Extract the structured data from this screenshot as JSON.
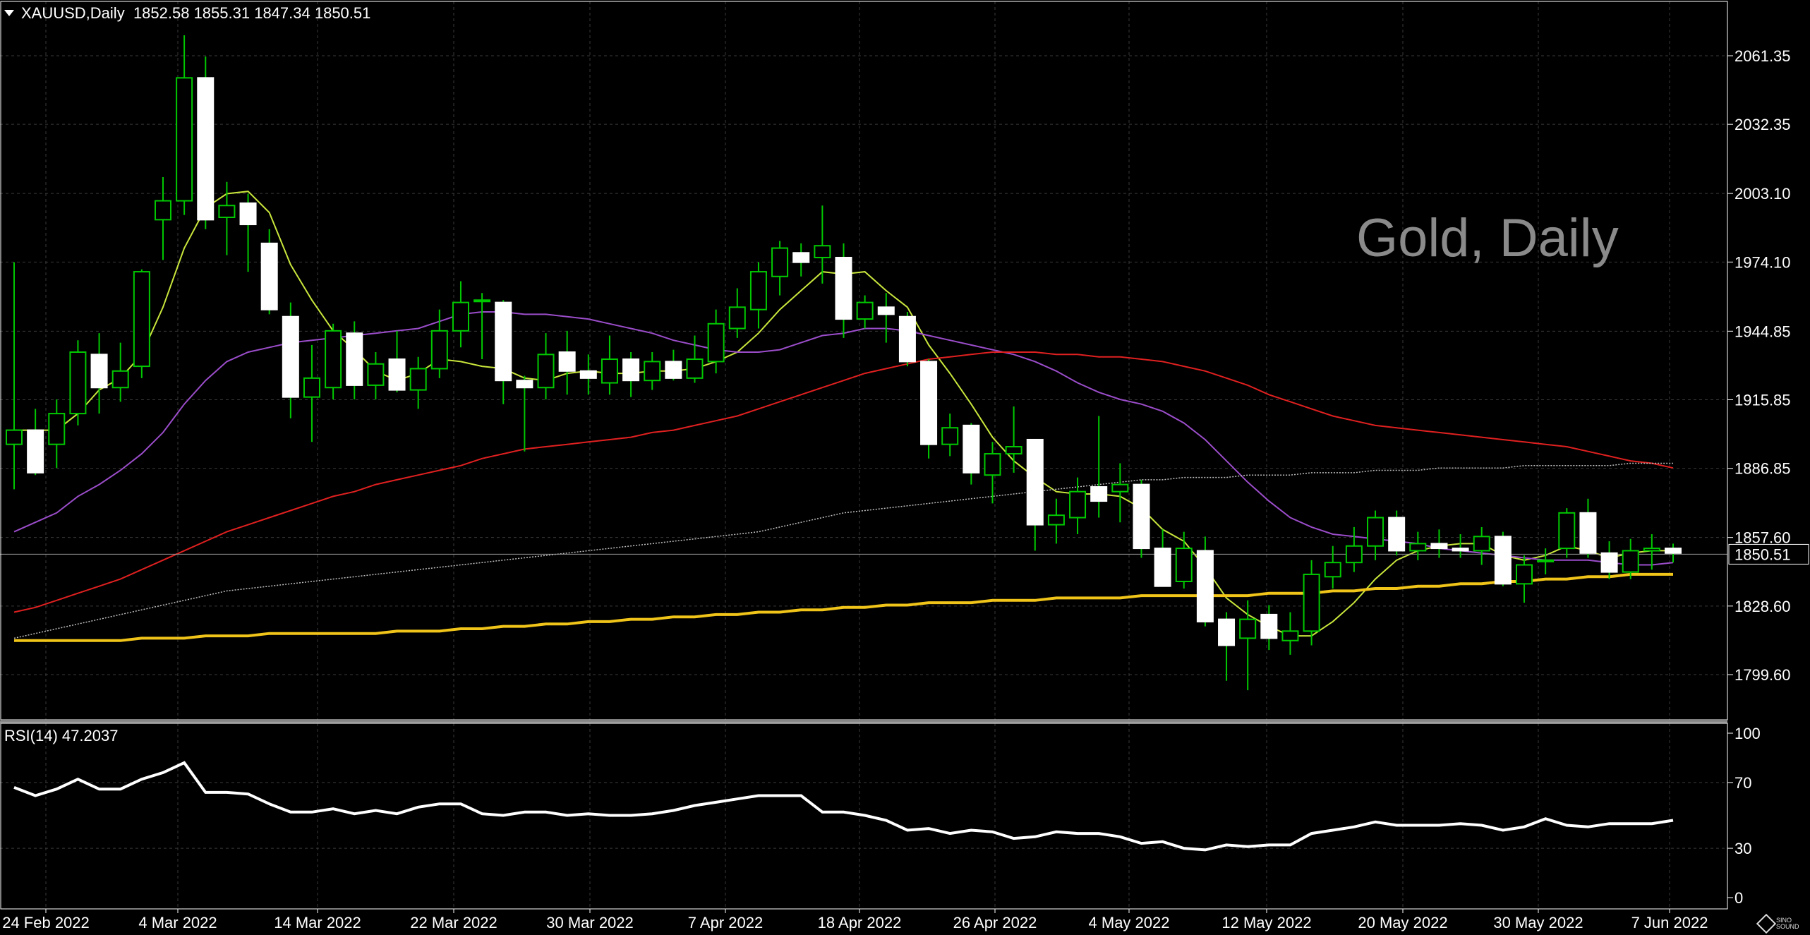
{
  "header": {
    "symbol": "XAUUSD,Daily",
    "ohlc": "1852.58 1855.31 1847.34 1850.51"
  },
  "watermark": "Gold, Daily",
  "rsi": {
    "label": "RSI(14) 47.2037",
    "levels": [
      "100",
      "70",
      "30",
      "0"
    ]
  },
  "logo_text": "SINO SOUND",
  "colors": {
    "background": "#000000",
    "grid": "#3a3a3a",
    "candle_up_border": "#00c800",
    "candle_fill": "#ffffff",
    "ma_short": "#c8e63c",
    "ma_mid": "#9b4dca",
    "ma_long": "#e02020",
    "ma_200": "#bfbfbf",
    "ma_yellow": "#f0c419",
    "rsi_line": "#ffffff"
  },
  "chart_data": [
    {
      "type": "candlestick",
      "title": "XAUUSD,Daily",
      "ylim": [
        1785,
        2075
      ],
      "y_ticks": [
        "2061.35",
        "2032.35",
        "2003.10",
        "1974.10",
        "1944.85",
        "1915.85",
        "1886.85",
        "1857.60",
        "1828.60",
        "1799.60"
      ],
      "current_price": "1850.51",
      "x_labels": [
        "24 Feb 2022",
        "4 Mar 2022",
        "14 Mar 2022",
        "22 Mar 2022",
        "30 Mar 2022",
        "7 Apr 2022",
        "18 Apr 2022",
        "26 Apr 2022",
        "4 May 2022",
        "12 May 2022",
        "20 May 2022",
        "30 May 2022",
        "7 Jun 2022"
      ],
      "candles": [
        {
          "o": 1897,
          "h": 1974,
          "l": 1878,
          "c": 1903
        },
        {
          "o": 1903,
          "h": 1912,
          "l": 1884,
          "c": 1885
        },
        {
          "o": 1897,
          "h": 1916,
          "l": 1887,
          "c": 1910
        },
        {
          "o": 1910,
          "h": 1941,
          "l": 1905,
          "c": 1936
        },
        {
          "o": 1935,
          "h": 1944,
          "l": 1910,
          "c": 1921
        },
        {
          "o": 1921,
          "h": 1940,
          "l": 1915,
          "c": 1928
        },
        {
          "o": 1930,
          "h": 1971,
          "l": 1925,
          "c": 1970
        },
        {
          "o": 1992,
          "h": 2010,
          "l": 1975,
          "c": 2000
        },
        {
          "o": 2000,
          "h": 2070,
          "l": 1994,
          "c": 2052
        },
        {
          "o": 2052,
          "h": 2061,
          "l": 1988,
          "c": 1992
        },
        {
          "o": 1993,
          "h": 2008,
          "l": 1977,
          "c": 1998
        },
        {
          "o": 1999,
          "h": 2003,
          "l": 1970,
          "c": 1990
        },
        {
          "o": 1982,
          "h": 1988,
          "l": 1952,
          "c": 1954
        },
        {
          "o": 1951,
          "h": 1957,
          "l": 1908,
          "c": 1917
        },
        {
          "o": 1917,
          "h": 1939,
          "l": 1898,
          "c": 1925
        },
        {
          "o": 1921,
          "h": 1948,
          "l": 1916,
          "c": 1945
        },
        {
          "o": 1944,
          "h": 1949,
          "l": 1916,
          "c": 1922
        },
        {
          "o": 1922,
          "h": 1936,
          "l": 1916,
          "c": 1931
        },
        {
          "o": 1933,
          "h": 1945,
          "l": 1919,
          "c": 1920
        },
        {
          "o": 1920,
          "h": 1934,
          "l": 1912,
          "c": 1929
        },
        {
          "o": 1929,
          "h": 1954,
          "l": 1925,
          "c": 1945
        },
        {
          "o": 1945,
          "h": 1966,
          "l": 1938,
          "c": 1957
        },
        {
          "o": 1958,
          "h": 1961,
          "l": 1933,
          "c": 1958
        },
        {
          "o": 1957,
          "h": 1958,
          "l": 1914,
          "c": 1924
        },
        {
          "o": 1924,
          "h": 1926,
          "l": 1894,
          "c": 1921
        },
        {
          "o": 1921,
          "h": 1944,
          "l": 1916,
          "c": 1935
        },
        {
          "o": 1936,
          "h": 1945,
          "l": 1918,
          "c": 1928
        },
        {
          "o": 1928,
          "h": 1935,
          "l": 1918,
          "c": 1925
        },
        {
          "o": 1923,
          "h": 1943,
          "l": 1918,
          "c": 1933
        },
        {
          "o": 1933,
          "h": 1936,
          "l": 1917,
          "c": 1924
        },
        {
          "o": 1924,
          "h": 1936,
          "l": 1920,
          "c": 1932
        },
        {
          "o": 1932,
          "h": 1937,
          "l": 1924,
          "c": 1925
        },
        {
          "o": 1925,
          "h": 1943,
          "l": 1923,
          "c": 1933
        },
        {
          "o": 1932,
          "h": 1954,
          "l": 1927,
          "c": 1948
        },
        {
          "o": 1946,
          "h": 1963,
          "l": 1942,
          "c": 1955
        },
        {
          "o": 1954,
          "h": 1974,
          "l": 1946,
          "c": 1970
        },
        {
          "o": 1968,
          "h": 1983,
          "l": 1960,
          "c": 1980
        },
        {
          "o": 1978,
          "h": 1982,
          "l": 1968,
          "c": 1974
        },
        {
          "o": 1976,
          "h": 1998,
          "l": 1965,
          "c": 1981
        },
        {
          "o": 1976,
          "h": 1982,
          "l": 1942,
          "c": 1950
        },
        {
          "o": 1950,
          "h": 1960,
          "l": 1946,
          "c": 1957
        },
        {
          "o": 1955,
          "h": 1961,
          "l": 1940,
          "c": 1952
        },
        {
          "o": 1951,
          "h": 1953,
          "l": 1930,
          "c": 1932
        },
        {
          "o": 1932,
          "h": 1933,
          "l": 1891,
          "c": 1897
        },
        {
          "o": 1897,
          "h": 1910,
          "l": 1892,
          "c": 1904
        },
        {
          "o": 1905,
          "h": 1906,
          "l": 1880,
          "c": 1885
        },
        {
          "o": 1884,
          "h": 1898,
          "l": 1872,
          "c": 1893
        },
        {
          "o": 1893,
          "h": 1913,
          "l": 1885,
          "c": 1896
        },
        {
          "o": 1899,
          "h": 1899,
          "l": 1852,
          "c": 1863
        },
        {
          "o": 1863,
          "h": 1874,
          "l": 1855,
          "c": 1867
        },
        {
          "o": 1866,
          "h": 1883,
          "l": 1859,
          "c": 1877
        },
        {
          "o": 1879,
          "h": 1909,
          "l": 1866,
          "c": 1873
        },
        {
          "o": 1877,
          "h": 1889,
          "l": 1864,
          "c": 1880
        },
        {
          "o": 1880,
          "h": 1882,
          "l": 1849,
          "c": 1853
        },
        {
          "o": 1853,
          "h": 1861,
          "l": 1837,
          "c": 1837
        },
        {
          "o": 1839,
          "h": 1860,
          "l": 1836,
          "c": 1853
        },
        {
          "o": 1852,
          "h": 1858,
          "l": 1820,
          "c": 1822
        },
        {
          "o": 1823,
          "h": 1826,
          "l": 1797,
          "c": 1812
        },
        {
          "o": 1815,
          "h": 1831,
          "l": 1793,
          "c": 1823
        },
        {
          "o": 1825,
          "h": 1829,
          "l": 1810,
          "c": 1815
        },
        {
          "o": 1814,
          "h": 1826,
          "l": 1808,
          "c": 1818
        },
        {
          "o": 1818,
          "h": 1848,
          "l": 1812,
          "c": 1842
        },
        {
          "o": 1841,
          "h": 1854,
          "l": 1836,
          "c": 1847
        },
        {
          "o": 1847,
          "h": 1862,
          "l": 1843,
          "c": 1854
        },
        {
          "o": 1854,
          "h": 1869,
          "l": 1848,
          "c": 1866
        },
        {
          "o": 1866,
          "h": 1869,
          "l": 1850,
          "c": 1852
        },
        {
          "o": 1852,
          "h": 1860,
          "l": 1848,
          "c": 1855
        },
        {
          "o": 1855,
          "h": 1861,
          "l": 1849,
          "c": 1853
        },
        {
          "o": 1853,
          "h": 1859,
          "l": 1849,
          "c": 1852
        },
        {
          "o": 1852,
          "h": 1862,
          "l": 1846,
          "c": 1858
        },
        {
          "o": 1858,
          "h": 1860,
          "l": 1837,
          "c": 1838
        },
        {
          "o": 1838,
          "h": 1850,
          "l": 1830,
          "c": 1846
        },
        {
          "o": 1848,
          "h": 1853,
          "l": 1842,
          "c": 1848
        },
        {
          "o": 1853,
          "h": 1870,
          "l": 1849,
          "c": 1868
        },
        {
          "o": 1868,
          "h": 1874,
          "l": 1849,
          "c": 1851
        },
        {
          "o": 1851,
          "h": 1856,
          "l": 1840,
          "c": 1843
        },
        {
          "o": 1843,
          "h": 1857,
          "l": 1840,
          "c": 1852
        },
        {
          "o": 1852,
          "h": 1859,
          "l": 1844,
          "c": 1853
        },
        {
          "o": 1853,
          "h": 1855,
          "l": 1847,
          "c": 1851
        }
      ],
      "moving_averages": [
        {
          "color": "#c8e63c",
          "values": [
            1903,
            1903,
            1903,
            1910,
            1920,
            1925,
            1935,
            1955,
            1980,
            1997,
            2003,
            2004,
            1995,
            1973,
            1958,
            1945,
            1937,
            1928,
            1924,
            1927,
            1933,
            1932,
            1930,
            1929,
            1925,
            1924,
            1927,
            1928,
            1927,
            1927,
            1928,
            1928,
            1929,
            1932,
            1936,
            1944,
            1954,
            1962,
            1970,
            1969,
            1970,
            1962,
            1955,
            1939,
            1927,
            1914,
            1900,
            1890,
            1883,
            1877,
            1876,
            1876,
            1875,
            1870,
            1861,
            1856,
            1845,
            1832,
            1825,
            1820,
            1816,
            1816,
            1822,
            1830,
            1840,
            1848,
            1852,
            1854,
            1855,
            1855,
            1850,
            1848,
            1850,
            1854,
            1852,
            1849,
            1851,
            1852,
            1852
          ]
        },
        {
          "color": "#9b4dca",
          "values": [
            1860,
            1864,
            1868,
            1875,
            1880,
            1886,
            1893,
            1902,
            1914,
            1924,
            1932,
            1936,
            1938,
            1940,
            1941,
            1942,
            1943,
            1944,
            1945,
            1946,
            1949,
            1952,
            1953,
            1953,
            1952,
            1952,
            1951,
            1950,
            1948,
            1946,
            1944,
            1941,
            1939,
            1937,
            1936,
            1936,
            1937,
            1940,
            1943,
            1944,
            1946,
            1946,
            1945,
            1943,
            1941,
            1939,
            1937,
            1935,
            1932,
            1928,
            1923,
            1919,
            1916,
            1914,
            1911,
            1906,
            1899,
            1890,
            1881,
            1873,
            1866,
            1862,
            1859,
            1858,
            1857,
            1856,
            1855,
            1853,
            1852,
            1851,
            1850,
            1849,
            1848,
            1848,
            1848,
            1847,
            1846,
            1846,
            1847
          ]
        },
        {
          "color": "#e02020",
          "values": [
            1826,
            1828,
            1831,
            1834,
            1837,
            1840,
            1844,
            1848,
            1852,
            1856,
            1860,
            1863,
            1866,
            1869,
            1872,
            1875,
            1877,
            1880,
            1882,
            1884,
            1886,
            1888,
            1891,
            1893,
            1895,
            1896,
            1897,
            1898,
            1899,
            1900,
            1902,
            1903,
            1905,
            1907,
            1909,
            1912,
            1915,
            1918,
            1921,
            1924,
            1927,
            1929,
            1931,
            1933,
            1934,
            1935,
            1936,
            1936,
            1936,
            1935,
            1935,
            1934,
            1934,
            1933,
            1932,
            1930,
            1928,
            1925,
            1922,
            1918,
            1915,
            1912,
            1909,
            1907,
            1905,
            1904,
            1903,
            1902,
            1901,
            1900,
            1899,
            1898,
            1897,
            1896,
            1894,
            1892,
            1890,
            1889,
            1887
          ]
        },
        {
          "color": "#bfbfbf",
          "values": [
            1815,
            1817,
            1819,
            1821,
            1823,
            1825,
            1827,
            1829,
            1831,
            1833,
            1835,
            1836,
            1837,
            1838,
            1839,
            1840,
            1841,
            1842,
            1843,
            1844,
            1845,
            1846,
            1847,
            1848,
            1849,
            1850,
            1851,
            1852,
            1853,
            1854,
            1855,
            1856,
            1857,
            1858,
            1859,
            1860,
            1862,
            1864,
            1866,
            1868,
            1869,
            1870,
            1871,
            1872,
            1873,
            1874,
            1875,
            1876,
            1877,
            1878,
            1879,
            1880,
            1881,
            1882,
            1882,
            1883,
            1883,
            1883,
            1884,
            1884,
            1884,
            1885,
            1885,
            1885,
            1886,
            1886,
            1886,
            1887,
            1887,
            1887,
            1887,
            1888,
            1888,
            1888,
            1888,
            1888,
            1889,
            1889,
            1889
          ]
        },
        {
          "color": "#f0c419",
          "values": [
            1814,
            1814,
            1814,
            1814,
            1814,
            1814,
            1815,
            1815,
            1815,
            1816,
            1816,
            1816,
            1817,
            1817,
            1817,
            1817,
            1817,
            1817,
            1818,
            1818,
            1818,
            1819,
            1819,
            1820,
            1820,
            1821,
            1821,
            1822,
            1822,
            1823,
            1823,
            1824,
            1824,
            1825,
            1825,
            1826,
            1826,
            1827,
            1827,
            1828,
            1828,
            1829,
            1829,
            1830,
            1830,
            1830,
            1831,
            1831,
            1831,
            1832,
            1832,
            1832,
            1832,
            1833,
            1833,
            1833,
            1833,
            1833,
            1833,
            1834,
            1834,
            1834,
            1835,
            1835,
            1836,
            1836,
            1837,
            1837,
            1838,
            1838,
            1839,
            1839,
            1840,
            1840,
            1841,
            1841,
            1842,
            1842,
            1842
          ]
        }
      ]
    },
    {
      "type": "line",
      "title": "RSI(14) 47.2037",
      "ylim": [
        0,
        100
      ],
      "series": [
        {
          "values": [
            67,
            62,
            66,
            72,
            66,
            66,
            72,
            76,
            82,
            64,
            64,
            63,
            57,
            52,
            52,
            54,
            51,
            53,
            51,
            55,
            57,
            57,
            51,
            50,
            52,
            52,
            50,
            51,
            50,
            50,
            51,
            53,
            56,
            58,
            60,
            62,
            62,
            62,
            52,
            52,
            50,
            47,
            41,
            42,
            39,
            41,
            40,
            36,
            37,
            40,
            39,
            39,
            37,
            33,
            34,
            30,
            29,
            32,
            31,
            32,
            32,
            39,
            41,
            43,
            46,
            44,
            44,
            44,
            45,
            44,
            41,
            43,
            48,
            44,
            43,
            45,
            45,
            45,
            47
          ]
        }
      ]
    }
  ]
}
